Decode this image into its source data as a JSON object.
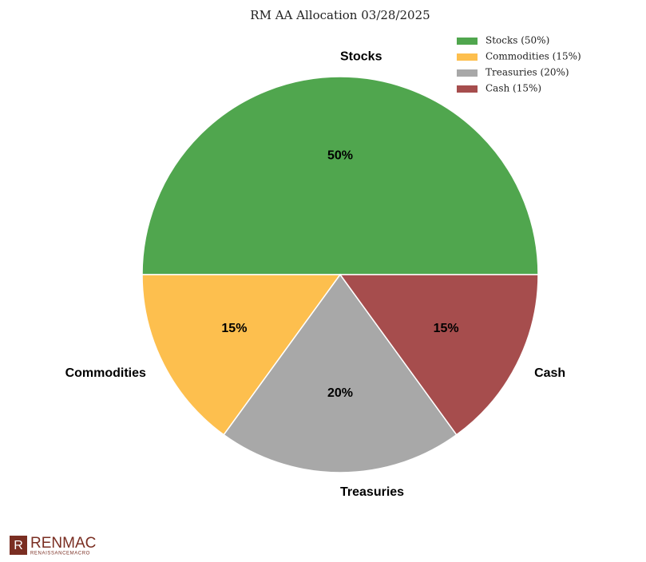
{
  "chart_data": {
    "type": "pie",
    "title": "RM AA Allocation 03/28/2025",
    "categories": [
      "Stocks",
      "Commodities",
      "Treasuries",
      "Cash"
    ],
    "values": [
      50,
      15,
      20,
      15
    ],
    "value_labels": [
      "50%",
      "15%",
      "20%",
      "15%"
    ],
    "colors": [
      "#50a64e",
      "#fdbf4e",
      "#a8a8a8",
      "#a64d4d"
    ],
    "legend_labels": [
      "Stocks (50%)",
      "Commodities (15%)",
      "Treasuries (20%)",
      "Cash (15%)"
    ],
    "legend": "upper right"
  },
  "branding": {
    "name": "RENMAC",
    "tagline": "RENAISSANCEMACRO"
  }
}
